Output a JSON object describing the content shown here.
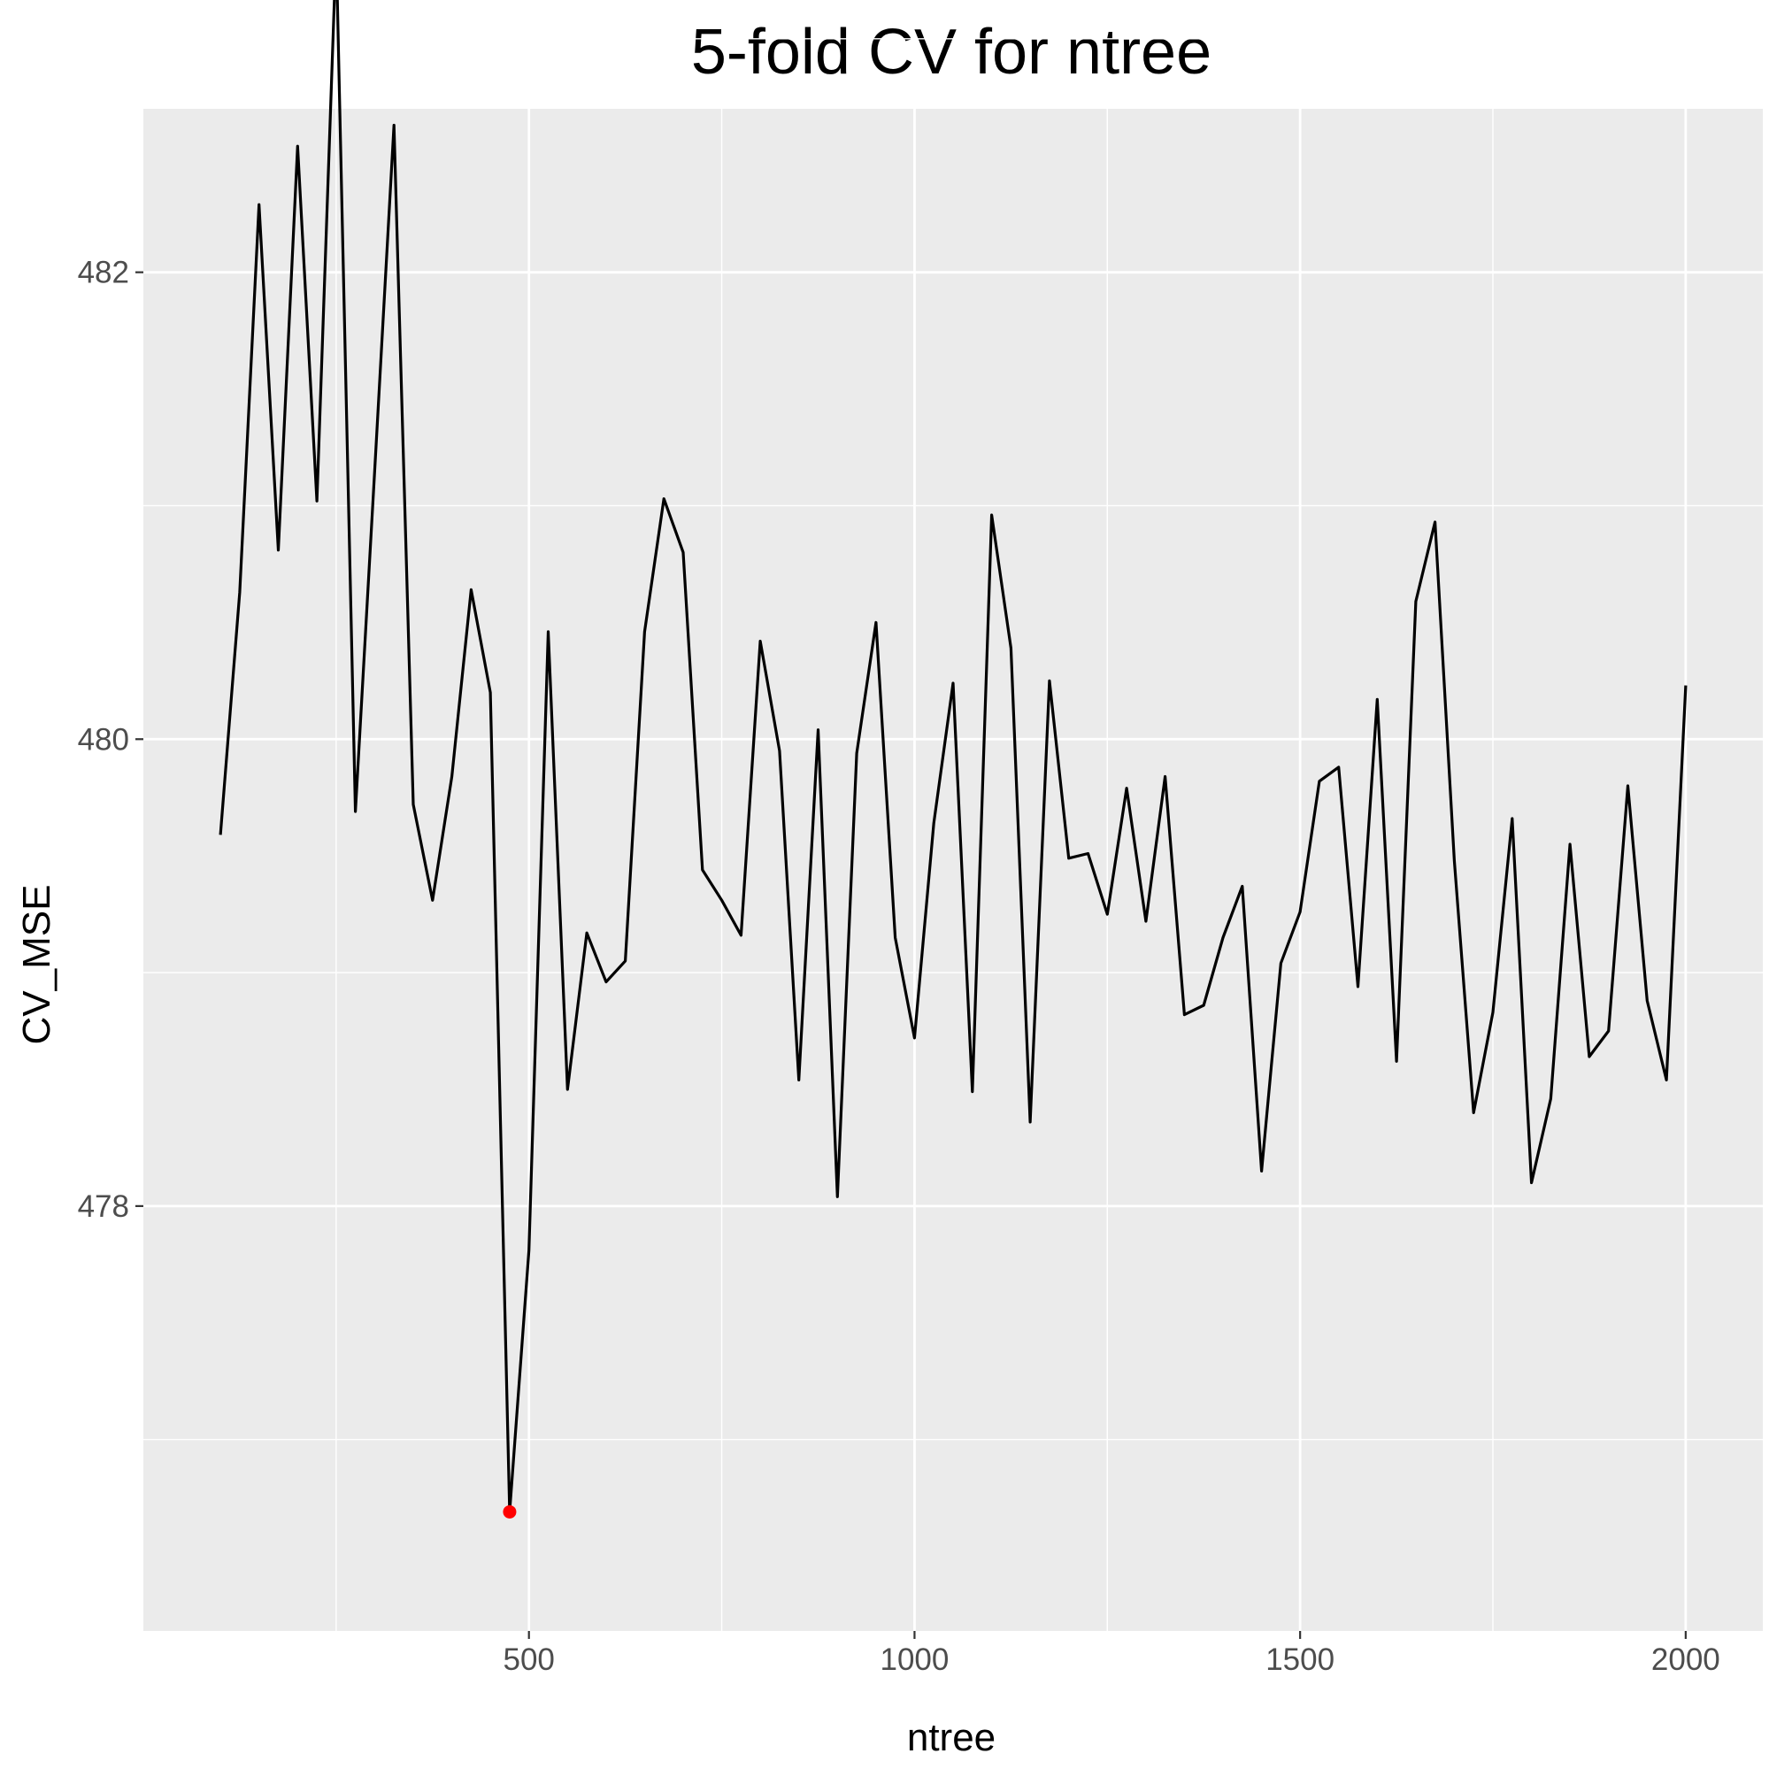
{
  "chart_data": {
    "type": "line",
    "title": "5-fold CV for ntree",
    "xlabel": "ntree",
    "ylabel": "CV_MSE",
    "xlim": [
      0,
      2100
    ],
    "ylim": [
      476.18,
      482.7
    ],
    "x_ticks": [
      500,
      1000,
      1500,
      2000
    ],
    "x_tick_labels": [
      "500",
      "1000",
      "1500",
      "2000"
    ],
    "y_ticks": [
      478,
      480,
      482
    ],
    "y_tick_labels": [
      "478",
      "480",
      "482"
    ],
    "grid": true,
    "panel_background": "#ebebeb",
    "line_color": "#000000",
    "highlight_color": "#ff0000",
    "x": [
      100,
      125,
      150,
      175,
      200,
      225,
      250,
      275,
      300,
      325,
      350,
      375,
      400,
      425,
      450,
      475,
      500,
      525,
      550,
      575,
      600,
      625,
      650,
      675,
      700,
      725,
      750,
      775,
      800,
      825,
      850,
      875,
      900,
      925,
      950,
      975,
      1000,
      1025,
      1050,
      1075,
      1100,
      1125,
      1150,
      1175,
      1200,
      1225,
      1250,
      1275,
      1300,
      1325,
      1350,
      1375,
      1400,
      1425,
      1450,
      1475,
      1500,
      1525,
      1550,
      1575,
      1600,
      1625,
      1650,
      1675,
      1700,
      1725,
      1750,
      1775,
      1800,
      1825,
      1850,
      1875,
      1900,
      1925,
      1950,
      1975,
      2000
    ],
    "values": [
      479.59,
      480.63,
      482.29,
      480.81,
      482.54,
      481.02,
      483.39,
      479.69,
      481.15,
      482.63,
      479.72,
      479.31,
      479.84,
      480.64,
      480.2,
      476.69,
      477.81,
      480.46,
      478.5,
      479.17,
      478.96,
      479.05,
      480.46,
      481.03,
      480.8,
      479.44,
      479.31,
      479.16,
      480.42,
      479.95,
      478.54,
      480.04,
      478.04,
      479.94,
      480.5,
      479.15,
      478.72,
      479.64,
      480.24,
      478.49,
      480.96,
      480.39,
      478.36,
      480.25,
      479.49,
      479.51,
      479.25,
      479.79,
      479.22,
      479.84,
      478.82,
      478.86,
      479.15,
      479.37,
      478.15,
      479.04,
      479.26,
      479.82,
      479.88,
      478.94,
      480.17,
      478.62,
      480.59,
      480.93,
      479.48,
      478.4,
      478.83,
      479.66,
      478.1,
      478.46,
      479.55,
      478.64,
      478.75,
      479.8,
      478.88,
      478.54,
      480.23
    ],
    "highlight_point": {
      "x": 475,
      "y": 476.69
    }
  }
}
